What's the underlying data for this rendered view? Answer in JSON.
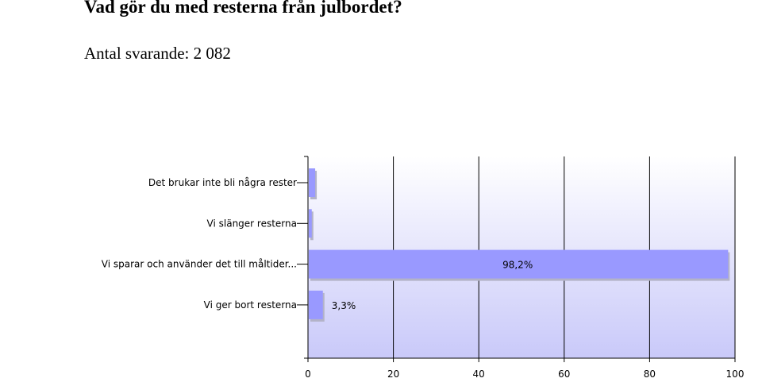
{
  "header": {
    "title": "Vad gör du med resterna från julbordet?",
    "subtitle": "Antal svarande: 2 082"
  },
  "colors": {
    "bar": "#9999ff",
    "bar_shadow": "#b3b3c8",
    "plot_top": "#ffffff",
    "plot_bottom": "#c9c9f9",
    "grid": "#000000"
  },
  "chart_data": {
    "type": "bar",
    "orientation": "horizontal",
    "categories": [
      "Det brukar inte bli några rester",
      "Vi slänger resterna",
      "Vi sparar och använder det till måltider...",
      "Vi ger bort resterna"
    ],
    "values": [
      1.5,
      0.7,
      98.2,
      3.3
    ],
    "value_labels": [
      "",
      "",
      "98,2%",
      "3,3%"
    ],
    "xticks": [
      "0",
      "20",
      "40",
      "60",
      "80",
      "100"
    ],
    "xlim": [
      0,
      100
    ],
    "grid": true,
    "legend": "none"
  }
}
